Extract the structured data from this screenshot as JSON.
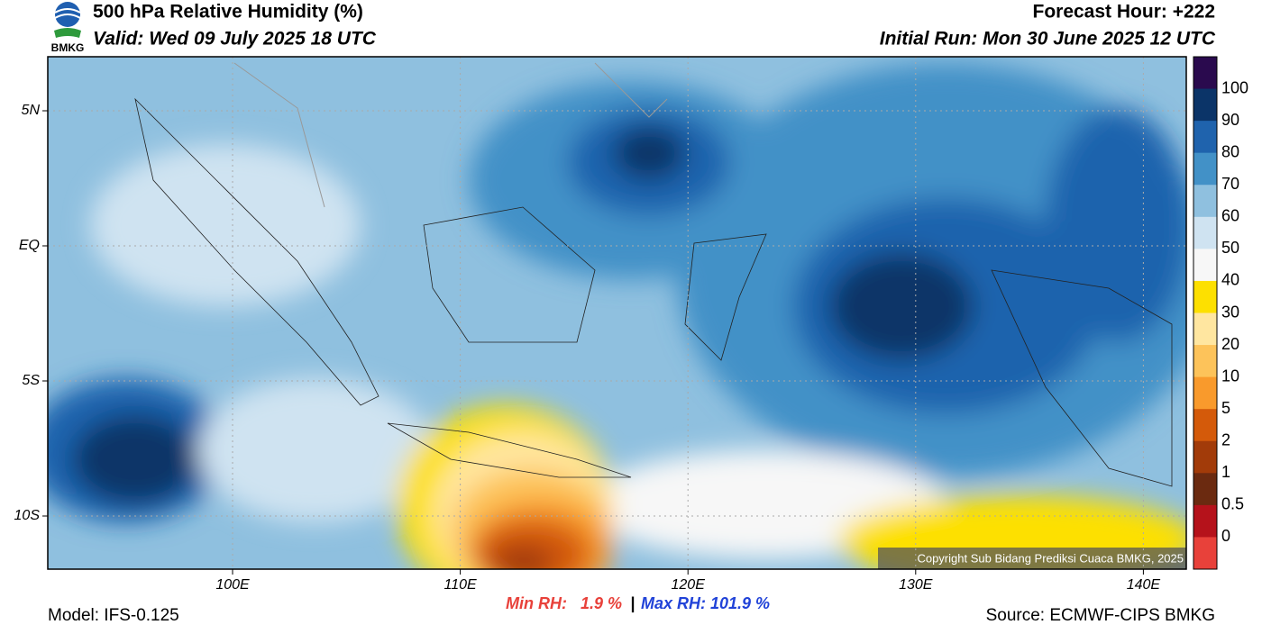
{
  "header": {
    "logo": "BMKG",
    "title": "500 hPa Relative Humidity (%)",
    "valid": "Valid: Wed 09 July 2025 18 UTC",
    "forecast_hour": "Forecast Hour: +222",
    "initial_run": "Initial Run: Mon 30 June 2025 12 UTC"
  },
  "axes": {
    "lat_labels": [
      "5N",
      "EQ",
      "5S",
      "10S"
    ],
    "lon_labels": [
      "100E",
      "110E",
      "120E",
      "130E",
      "140E"
    ]
  },
  "colorbar": {
    "labels": [
      "100",
      "90",
      "80",
      "70",
      "60",
      "50",
      "40",
      "30",
      "20",
      "10",
      "5",
      "2",
      "1",
      "0.5",
      "0"
    ],
    "colors": [
      "#2a0a4e",
      "#0b3468",
      "#1f63ad",
      "#4291c7",
      "#8fc0df",
      "#cfe3f1",
      "#f7f7f7",
      "#fde000",
      "#ffe6a0",
      "#fdc35a",
      "#f99a2c",
      "#d45a0a",
      "#a23b09",
      "#6b2a10",
      "#b5121b",
      "#e8413a"
    ]
  },
  "footer": {
    "model": "Model: IFS-0.125",
    "min_rh": "Min RH:   1.9 %",
    "separator": "|",
    "max_rh": "Max RH: 101.9 %",
    "source": "Source: ECMWF-CIPS BMKG",
    "copyright": "Copyright Sub Bidang Prediksi Cuaca BMKG, 2025"
  }
}
